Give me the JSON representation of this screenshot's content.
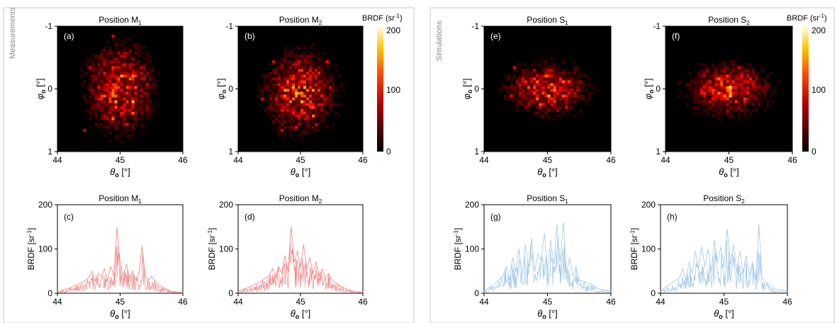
{
  "groups": [
    {
      "label": "Measurements"
    },
    {
      "label": "Simulations"
    }
  ],
  "colorbars": [
    {
      "title": "BRDF (sr",
      "title_sup": "-1",
      "title_end": ")",
      "ticks": [
        "200",
        "100",
        "0"
      ]
    },
    {
      "title": "BRDF (sr",
      "title_sup": "-1",
      "title_end": ")",
      "ticks": [
        "200",
        "100",
        "0"
      ]
    }
  ],
  "chart_data": [
    {
      "type": "heatmap",
      "panel_label": "(a)",
      "title": "Position M",
      "title_sub": "1",
      "xlabel": "θ",
      "xlabel_sub": "o",
      "xlabel_unit": " [°]",
      "ylabel": "φ",
      "ylabel_sub": "o",
      "ylabel_unit": " [°]",
      "xlim": [
        44,
        46
      ],
      "ylim": [
        -1,
        1
      ],
      "xticks": [
        "44",
        "45",
        "46"
      ],
      "yticks": [
        "-1",
        "0",
        "1"
      ],
      "zlim": [
        0,
        200
      ],
      "colormap": "hot",
      "blob_center": [
        45.0,
        0.0
      ],
      "blob_spread": [
        0.42,
        0.55
      ],
      "peak": 95
    },
    {
      "type": "heatmap",
      "panel_label": "(b)",
      "title": "Position M",
      "title_sub": "2",
      "xlabel": "θ",
      "xlabel_sub": "o",
      "xlabel_unit": " [°]",
      "ylabel": "φ",
      "ylabel_sub": "o",
      "ylabel_unit": " [°]",
      "xlim": [
        44,
        46
      ],
      "ylim": [
        -1,
        1
      ],
      "xticks": [
        "44",
        "45",
        "46"
      ],
      "yticks": [
        "-1",
        "0",
        "1"
      ],
      "zlim": [
        0,
        200
      ],
      "colormap": "hot",
      "blob_center": [
        45.0,
        0.05
      ],
      "blob_spread": [
        0.45,
        0.5
      ],
      "peak": 95
    },
    {
      "type": "heatmap",
      "panel_label": "(e)",
      "title": "Position S",
      "title_sub": "1",
      "xlabel": "θ",
      "xlabel_sub": "o",
      "xlabel_unit": " [°]",
      "ylabel": "φ",
      "ylabel_sub": "o",
      "ylabel_unit": " [°]",
      "xlim": [
        44,
        46
      ],
      "ylim": [
        -1,
        1
      ],
      "xticks": [
        "44",
        "45",
        "46"
      ],
      "yticks": [
        "-1",
        "0",
        "1"
      ],
      "zlim": [
        0,
        200
      ],
      "colormap": "hot",
      "blob_center": [
        45.0,
        0.0
      ],
      "blob_spread": [
        0.5,
        0.32
      ],
      "peak": 95
    },
    {
      "type": "heatmap",
      "panel_label": "(f)",
      "title": "Position S",
      "title_sub": "2",
      "xlabel": "θ",
      "xlabel_sub": "o",
      "xlabel_unit": " [°]",
      "ylabel": "φ",
      "ylabel_sub": "o",
      "ylabel_unit": " [°]",
      "xlim": [
        44,
        46
      ],
      "ylim": [
        -1,
        1
      ],
      "xticks": [
        "44",
        "45",
        "46"
      ],
      "yticks": [
        "-1",
        "0",
        "1"
      ],
      "zlim": [
        0,
        200
      ],
      "colormap": "hot",
      "blob_center": [
        45.0,
        0.0
      ],
      "blob_spread": [
        0.5,
        0.32
      ],
      "peak": 95
    },
    {
      "type": "line",
      "panel_label": "(c)",
      "title": "Position M",
      "title_sub": "1",
      "xlabel": "θ",
      "xlabel_sub": "o",
      "xlabel_unit": " [°]",
      "ylabel": "BRDF [sr",
      "ylabel_sup": "-1",
      "ylabel_end": "]",
      "xlim": [
        44,
        46
      ],
      "ylim": [
        0,
        200
      ],
      "xticks": [
        "44",
        "45",
        "46"
      ],
      "yticks": [
        "0",
        "100",
        "200"
      ],
      "color": "#f08080",
      "x": [
        44.0,
        44.1,
        44.2,
        44.3,
        44.4,
        44.5,
        44.55,
        44.6,
        44.65,
        44.7,
        44.75,
        44.8,
        44.85,
        44.9,
        44.95,
        45.0,
        45.05,
        45.1,
        45.15,
        45.2,
        45.25,
        45.3,
        45.35,
        45.4,
        45.45,
        45.5,
        45.6,
        45.7,
        45.8,
        46.0
      ],
      "y": [
        3,
        8,
        12,
        18,
        25,
        35,
        50,
        28,
        45,
        38,
        55,
        30,
        60,
        40,
        148,
        70,
        40,
        65,
        35,
        50,
        30,
        45,
        107,
        40,
        30,
        38,
        20,
        12,
        5,
        2
      ]
    },
    {
      "type": "line",
      "panel_label": "(d)",
      "title": "Position M",
      "title_sub": "2",
      "xlabel": "θ",
      "xlabel_sub": "o",
      "xlabel_unit": " [°]",
      "ylabel": "BRDF [sr",
      "ylabel_sup": "-1",
      "ylabel_end": "]",
      "xlim": [
        44,
        46
      ],
      "ylim": [
        0,
        200
      ],
      "xticks": [
        "44",
        "45",
        "46"
      ],
      "yticks": [
        "0",
        "100",
        "200"
      ],
      "color": "#f08080",
      "x": [
        44.0,
        44.1,
        44.2,
        44.3,
        44.4,
        44.5,
        44.55,
        44.6,
        44.65,
        44.7,
        44.75,
        44.8,
        44.85,
        44.9,
        44.95,
        45.0,
        45.05,
        45.1,
        45.15,
        45.2,
        45.25,
        45.3,
        45.35,
        45.4,
        45.45,
        45.5,
        45.6,
        45.7,
        45.8,
        46.0
      ],
      "y": [
        4,
        10,
        15,
        22,
        30,
        40,
        55,
        38,
        60,
        45,
        85,
        50,
        150,
        70,
        95,
        60,
        110,
        55,
        80,
        45,
        70,
        40,
        55,
        35,
        45,
        30,
        20,
        12,
        6,
        2
      ]
    },
    {
      "type": "line",
      "panel_label": "(g)",
      "title": "Position S",
      "title_sub": "1",
      "xlabel": "θ",
      "xlabel_sub": "o",
      "xlabel_unit": " [°]",
      "ylabel": "BRDF [sr",
      "ylabel_sup": "-1",
      "ylabel_end": "]",
      "xlim": [
        44,
        46
      ],
      "ylim": [
        0,
        200
      ],
      "xticks": [
        "44",
        "45",
        "46"
      ],
      "yticks": [
        "0",
        "100",
        "200"
      ],
      "color": "#9ec6e6",
      "x": [
        44.0,
        44.1,
        44.2,
        44.3,
        44.35,
        44.4,
        44.45,
        44.5,
        44.55,
        44.6,
        44.65,
        44.7,
        44.75,
        44.8,
        44.85,
        44.9,
        44.95,
        45.0,
        45.05,
        45.1,
        45.15,
        45.2,
        45.25,
        45.3,
        45.35,
        45.4,
        45.45,
        45.5,
        45.6,
        45.7,
        45.8,
        46.0
      ],
      "y": [
        5,
        15,
        25,
        40,
        60,
        30,
        80,
        50,
        100,
        40,
        110,
        60,
        125,
        50,
        90,
        75,
        135,
        55,
        120,
        65,
        155,
        70,
        160,
        45,
        80,
        40,
        60,
        30,
        25,
        20,
        10,
        5
      ]
    },
    {
      "type": "line",
      "panel_label": "(h)",
      "title": "Position S",
      "title_sub": "2",
      "xlabel": "θ",
      "xlabel_sub": "o",
      "xlabel_unit": " [°]",
      "ylabel": "BRDF [sr",
      "ylabel_sup": "-1",
      "ylabel_end": "]",
      "xlim": [
        44,
        46
      ],
      "ylim": [
        0,
        200
      ],
      "xticks": [
        "44",
        "45",
        "46"
      ],
      "yticks": [
        "0",
        "100",
        "200"
      ],
      "color": "#9ec6e6",
      "x": [
        44.0,
        44.1,
        44.2,
        44.3,
        44.35,
        44.4,
        44.45,
        44.5,
        44.55,
        44.6,
        44.65,
        44.7,
        44.75,
        44.8,
        44.85,
        44.9,
        44.95,
        45.0,
        45.05,
        45.1,
        45.15,
        45.2,
        45.25,
        45.3,
        45.35,
        45.4,
        45.45,
        45.5,
        45.55,
        45.6,
        45.7,
        45.8,
        46.0
      ],
      "y": [
        5,
        15,
        25,
        35,
        55,
        30,
        70,
        45,
        95,
        55,
        105,
        60,
        100,
        50,
        120,
        70,
        105,
        60,
        145,
        65,
        110,
        50,
        95,
        45,
        85,
        40,
        70,
        30,
        155,
        35,
        20,
        10,
        5
      ]
    }
  ]
}
